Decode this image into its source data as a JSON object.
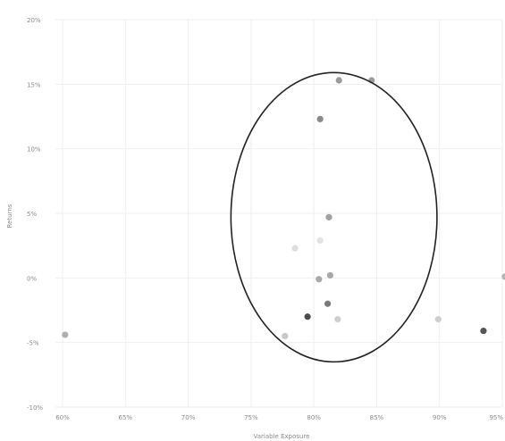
{
  "chart_data": {
    "type": "scatter",
    "title": "",
    "xlabel": "Variable Exposure",
    "ylabel": "Returns",
    "grid": true,
    "legend": "none",
    "x_ticks": [
      "60%",
      "65%",
      "70%",
      "75%",
      "80%",
      "85%",
      "90%",
      "95%"
    ],
    "y_ticks": [
      "20%",
      "15%",
      "10%",
      "5%",
      "0%",
      "-5%",
      "-10%"
    ],
    "xlim": [
      60,
      95
    ],
    "ylim": [
      -10,
      20
    ],
    "points": [
      {
        "x": 60.2,
        "y": -4.4,
        "shade": "#b0b0b0"
      },
      {
        "x": 77.7,
        "y": -4.5,
        "shade": "#c8c8c8"
      },
      {
        "x": 78.5,
        "y": 2.3,
        "shade": "#dddddd"
      },
      {
        "x": 79.5,
        "y": -3.0,
        "shade": "#4a4a4a"
      },
      {
        "x": 80.5,
        "y": 2.9,
        "shade": "#e2e2e2"
      },
      {
        "x": 80.4,
        "y": -0.1,
        "shade": "#a8a8a8"
      },
      {
        "x": 80.5,
        "y": 12.3,
        "shade": "#8a8a8a"
      },
      {
        "x": 81.2,
        "y": 4.7,
        "shade": "#a0a0a0"
      },
      {
        "x": 81.1,
        "y": -2.0,
        "shade": "#7a7a7a"
      },
      {
        "x": 81.3,
        "y": 0.2,
        "shade": "#a8a8a8"
      },
      {
        "x": 81.9,
        "y": -3.2,
        "shade": "#cfcfcf"
      },
      {
        "x": 82.0,
        "y": 15.3,
        "shade": "#9a9a9a"
      },
      {
        "x": 84.6,
        "y": 15.3,
        "shade": "#9a9a9a"
      },
      {
        "x": 89.9,
        "y": -3.2,
        "shade": "#cfcfcf"
      },
      {
        "x": 93.5,
        "y": -4.1,
        "shade": "#555555"
      },
      {
        "x": 95.2,
        "y": 0.1,
        "shade": "#b5b5b5"
      }
    ],
    "annotation": {
      "shape": "ellipse",
      "center_x": 81.6,
      "center_y": 4.7,
      "radius_x": 8.2,
      "radius_y": 11.2,
      "color": "#222222"
    }
  }
}
